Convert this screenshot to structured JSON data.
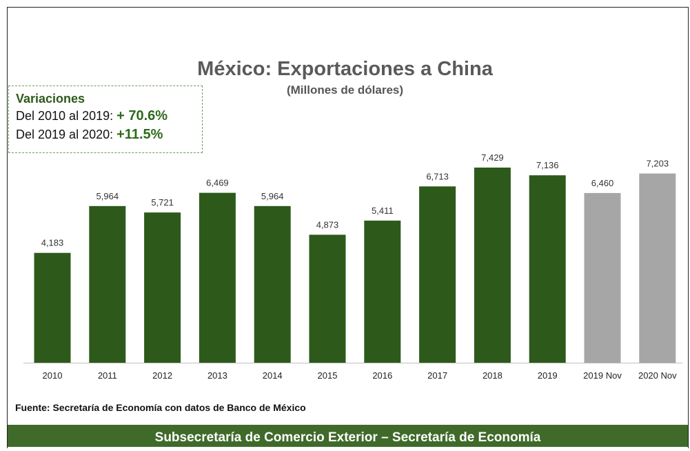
{
  "chart_data": {
    "type": "bar",
    "title": "México: Exportaciones a China",
    "subtitle": "(Millones de dólares)",
    "categories": [
      "2010",
      "2011",
      "2012",
      "2013",
      "2014",
      "2015",
      "2016",
      "2017",
      "2018",
      "2019",
      "2019 Nov",
      "2020 Nov"
    ],
    "values": [
      4183,
      5964,
      5721,
      6469,
      5964,
      4873,
      5411,
      6713,
      7429,
      7136,
      6460,
      7203
    ],
    "data_labels": [
      "4,183",
      "5,964",
      "5,721",
      "6,469",
      "5,964",
      "4,873",
      "5,411",
      "6,713",
      "7,429",
      "7,136",
      "6,460",
      "7,203"
    ],
    "bar_colors": [
      "#2d5a1b",
      "#2d5a1b",
      "#2d5a1b",
      "#2d5a1b",
      "#2d5a1b",
      "#2d5a1b",
      "#2d5a1b",
      "#2d5a1b",
      "#2d5a1b",
      "#2d5a1b",
      "#a6a6a6",
      "#a6a6a6"
    ],
    "ylim": [
      0,
      7429
    ],
    "grid": false,
    "legend": "none"
  },
  "variaciones": {
    "title": "Variaciones",
    "line1_label": "Del 2010 al 2019:",
    "line1_value": "+ 70.6%",
    "line2_label": "Del 2019 al 2020:",
    "line2_value": "+11.5%"
  },
  "source": "Fuente: Secretaría de Economía con datos de Banco de México",
  "footer": "Subsecretaría de Comercio Exterior – Secretaría de Economía",
  "colors": {
    "accent_green": "#2d5a1b",
    "projection_gray": "#a6a6a6",
    "footer_bg": "#3f6a2a"
  }
}
